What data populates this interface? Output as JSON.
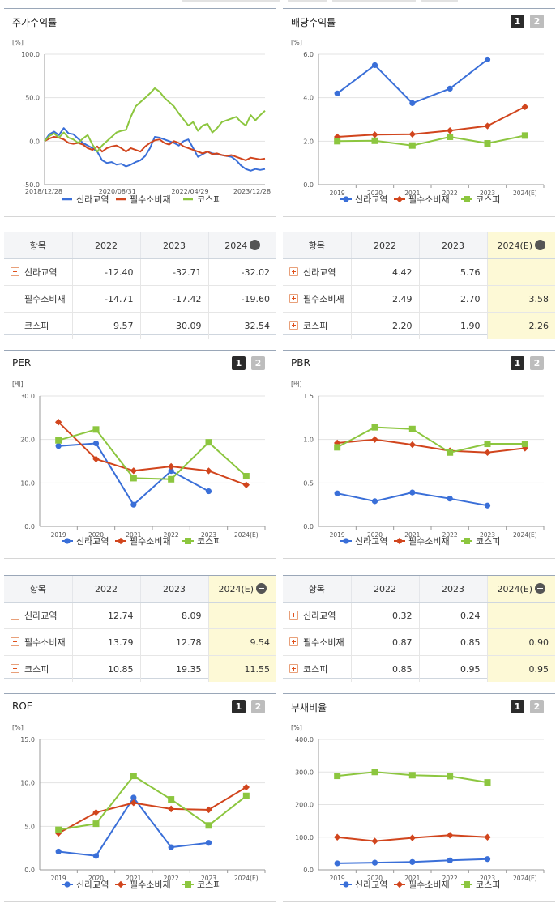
{
  "colors": {
    "shilla": "#3a6fd8",
    "staples": "#d1451d",
    "kospi": "#8cc63f"
  },
  "legend": [
    "신라교역",
    "필수소비재",
    "코스피"
  ],
  "pager": [
    "1",
    "2"
  ],
  "panels": {
    "stock": {
      "title": "주가수익률"
    },
    "dividend": {
      "title": "배당수익률"
    },
    "per": {
      "title": "PER"
    },
    "pbr": {
      "title": "PBR"
    },
    "roe": {
      "title": "ROE"
    },
    "debt": {
      "title": "부채비율"
    }
  },
  "tables": {
    "stock": {
      "head": [
        "항목",
        "2022",
        "2023",
        "2024"
      ],
      "rows": [
        {
          "label": "신라교역",
          "plus": true,
          "vals": [
            "-12.40",
            "-32.71",
            "-32.02"
          ]
        },
        {
          "label": "필수소비재",
          "plus": false,
          "vals": [
            "-14.71",
            "-17.42",
            "-19.60"
          ]
        },
        {
          "label": "코스피",
          "plus": false,
          "vals": [
            "9.57",
            "30.09",
            "32.54"
          ]
        }
      ]
    },
    "dividend": {
      "head": [
        "항목",
        "2022",
        "2023",
        "2024(E)"
      ],
      "rows": [
        {
          "label": "신라교역",
          "plus": true,
          "vals": [
            "4.42",
            "5.76",
            ""
          ]
        },
        {
          "label": "필수소비재",
          "plus": true,
          "vals": [
            "2.49",
            "2.70",
            "3.58"
          ]
        },
        {
          "label": "코스피",
          "plus": true,
          "vals": [
            "2.20",
            "1.90",
            "2.26"
          ]
        }
      ]
    },
    "per": {
      "head": [
        "항목",
        "2022",
        "2023",
        "2024(E)"
      ],
      "rows": [
        {
          "label": "신라교역",
          "plus": true,
          "vals": [
            "12.74",
            "8.09",
            ""
          ]
        },
        {
          "label": "필수소비재",
          "plus": true,
          "vals": [
            "13.79",
            "12.78",
            "9.54"
          ]
        },
        {
          "label": "코스피",
          "plus": true,
          "vals": [
            "10.85",
            "19.35",
            "11.55"
          ]
        }
      ]
    },
    "pbr": {
      "head": [
        "항목",
        "2022",
        "2023",
        "2024(E)"
      ],
      "rows": [
        {
          "label": "신라교역",
          "plus": true,
          "vals": [
            "0.32",
            "0.24",
            ""
          ]
        },
        {
          "label": "필수소비재",
          "plus": true,
          "vals": [
            "0.87",
            "0.85",
            "0.90"
          ]
        },
        {
          "label": "코스피",
          "plus": true,
          "vals": [
            "0.85",
            "0.95",
            "0.95"
          ]
        }
      ]
    }
  },
  "chart_data": [
    {
      "id": "stock",
      "type": "line",
      "title": "주가수익률",
      "ylabel": "[%]",
      "ylim": [
        -50,
        100
      ],
      "yticks": [
        "100.0",
        "50.0",
        "0.0",
        "-50.0"
      ],
      "xlabels": [
        "2018/12/28",
        "2020/08/31",
        "2022/04/29",
        "2023/12/28"
      ],
      "series": [
        {
          "name": "신라교역",
          "values": [
            0,
            8,
            11,
            7,
            15,
            9,
            8,
            3,
            -2,
            -5,
            -8,
            -12,
            -22,
            -25,
            -24,
            -27,
            -26,
            -29,
            -27,
            -24,
            -22,
            -17,
            -8,
            5,
            4,
            2,
            0,
            -2,
            -5,
            0,
            2,
            -8,
            -18,
            -15,
            -12,
            -14,
            -15,
            -16,
            -17,
            -18,
            -22,
            -28,
            -32,
            -34,
            -32,
            -33,
            -32
          ]
        },
        {
          "name": "필수소비재",
          "values": [
            0,
            3,
            5,
            4,
            2,
            -2,
            -3,
            -2,
            -4,
            -8,
            -10,
            -6,
            -12,
            -8,
            -6,
            -5,
            -8,
            -12,
            -8,
            -10,
            -12,
            -6,
            -2,
            1,
            2,
            -2,
            -4,
            0,
            -2,
            -6,
            -8,
            -10,
            -12,
            -14,
            -12,
            -15,
            -14,
            -16,
            -17,
            -16,
            -18,
            -20,
            -22,
            -19,
            -20,
            -21,
            -20
          ]
        },
        {
          "name": "코스피",
          "values": [
            0,
            6,
            9,
            4,
            10,
            4,
            2,
            -2,
            3,
            7,
            -4,
            -12,
            -5,
            0,
            5,
            10,
            12,
            13,
            28,
            40,
            45,
            50,
            55,
            61,
            57,
            50,
            45,
            40,
            32,
            25,
            18,
            22,
            12,
            18,
            20,
            10,
            15,
            22,
            24,
            26,
            28,
            22,
            18,
            30,
            24,
            30,
            35
          ]
        }
      ]
    },
    {
      "id": "dividend",
      "type": "line",
      "title": "배당수익률",
      "ylabel": "[%]",
      "ylim": [
        0,
        6
      ],
      "yticks": [
        "6.0",
        "4.0",
        "2.0",
        "0.0"
      ],
      "categories": [
        "2019",
        "2020",
        "2021",
        "2022",
        "2023",
        "2024(E)"
      ],
      "series": [
        {
          "name": "신라교역",
          "values": [
            4.2,
            5.5,
            3.75,
            4.42,
            5.76,
            null
          ]
        },
        {
          "name": "필수소비재",
          "values": [
            2.2,
            2.3,
            2.32,
            2.49,
            2.7,
            3.58
          ]
        },
        {
          "name": "코스피",
          "values": [
            2.0,
            2.02,
            1.8,
            2.2,
            1.9,
            2.26
          ]
        }
      ]
    },
    {
      "id": "per",
      "type": "line",
      "title": "PER",
      "ylabel": "[배]",
      "ylim": [
        0,
        30
      ],
      "yticks": [
        "30.0",
        "20.0",
        "10.0",
        "0.0"
      ],
      "categories": [
        "2019",
        "2020",
        "2021",
        "2022",
        "2023",
        "2024(E)"
      ],
      "series": [
        {
          "name": "신라교역",
          "values": [
            18.5,
            19.1,
            5.0,
            12.74,
            8.09,
            null
          ]
        },
        {
          "name": "필수소비재",
          "values": [
            24.0,
            15.5,
            12.8,
            13.79,
            12.78,
            9.54
          ]
        },
        {
          "name": "코스피",
          "values": [
            19.8,
            22.3,
            11.1,
            10.85,
            19.35,
            11.55
          ]
        }
      ]
    },
    {
      "id": "pbr",
      "type": "line",
      "title": "PBR",
      "ylabel": "[배]",
      "ylim": [
        0,
        1.5
      ],
      "yticks": [
        "1.5",
        "1.0",
        "0.5",
        "0.0"
      ],
      "categories": [
        "2019",
        "2020",
        "2021",
        "2022",
        "2023",
        "2024(E)"
      ],
      "series": [
        {
          "name": "신라교역",
          "values": [
            0.38,
            0.29,
            0.39,
            0.32,
            0.24,
            null
          ]
        },
        {
          "name": "필수소비재",
          "values": [
            0.96,
            1.0,
            0.94,
            0.87,
            0.85,
            0.9
          ]
        },
        {
          "name": "코스피",
          "values": [
            0.91,
            1.14,
            1.12,
            0.85,
            0.95,
            0.95
          ]
        }
      ]
    },
    {
      "id": "roe",
      "type": "line",
      "title": "ROE",
      "ylabel": "[%]",
      "ylim": [
        0,
        15
      ],
      "yticks": [
        "15.0",
        "10.0",
        "5.0",
        "0.0"
      ],
      "categories": [
        "2019",
        "2020",
        "2021",
        "2022",
        "2023",
        "2024(E)"
      ],
      "series": [
        {
          "name": "신라교역",
          "values": [
            2.1,
            1.6,
            8.3,
            2.6,
            3.1,
            null
          ]
        },
        {
          "name": "필수소비재",
          "values": [
            4.2,
            6.6,
            7.7,
            7.0,
            6.9,
            9.5
          ]
        },
        {
          "name": "코스피",
          "values": [
            4.6,
            5.3,
            10.8,
            8.1,
            5.1,
            8.5
          ]
        }
      ]
    },
    {
      "id": "debt",
      "type": "line",
      "title": "부채비율",
      "ylabel": "[%]",
      "ylim": [
        0,
        400
      ],
      "yticks": [
        "400.0",
        "300.0",
        "200.0",
        "100.0",
        "0.0"
      ],
      "categories": [
        "2019",
        "2020",
        "2021",
        "2022",
        "2023",
        "2024(E)"
      ],
      "series": [
        {
          "name": "신라교역",
          "values": [
            20,
            22,
            24,
            29,
            33,
            null
          ]
        },
        {
          "name": "필수소비재",
          "values": [
            100,
            88,
            98,
            106,
            100,
            null
          ]
        },
        {
          "name": "코스피",
          "values": [
            288,
            300,
            290,
            287,
            268,
            null
          ]
        }
      ]
    }
  ]
}
